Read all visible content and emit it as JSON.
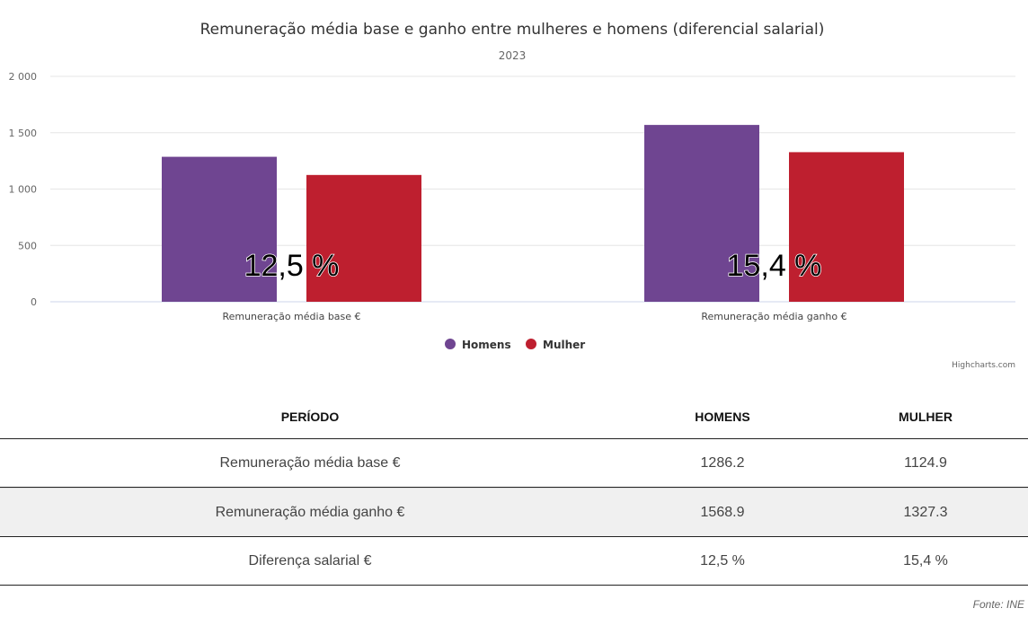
{
  "chart_data": {
    "type": "bar",
    "title": "Remuneração média base e ganho entre mulheres e homens (diferencial salarial)",
    "subtitle": "2023",
    "categories": [
      "Remuneração média base €",
      "Remuneração média ganho €"
    ],
    "series": [
      {
        "name": "Homens",
        "color": "#6f4591",
        "values": [
          1286.2,
          1568.9
        ]
      },
      {
        "name": "Mulher",
        "color": "#be1f2f",
        "values": [
          1124.9,
          1327.3
        ]
      }
    ],
    "annotations": [
      "12,5 %",
      "15,4 %"
    ],
    "ylim": [
      0,
      2000
    ],
    "yticks": [
      0,
      500,
      1000,
      1500,
      2000
    ],
    "ytick_labels": [
      "0",
      "500",
      "1 000",
      "1 500",
      "2 000"
    ],
    "grid": true,
    "legend": "bottom-center",
    "credits": "Highcharts.com"
  },
  "table": {
    "headers": [
      "PERÍODO",
      "HOMENS",
      "MULHER"
    ],
    "rows": [
      [
        "Remuneração média base €",
        "1286.2",
        "1124.9"
      ],
      [
        "Remuneração média ganho €",
        "1568.9",
        "1327.3"
      ],
      [
        "Diferença salarial €",
        "12,5 %",
        "15,4 %"
      ]
    ]
  },
  "source": "Fonte: INE"
}
